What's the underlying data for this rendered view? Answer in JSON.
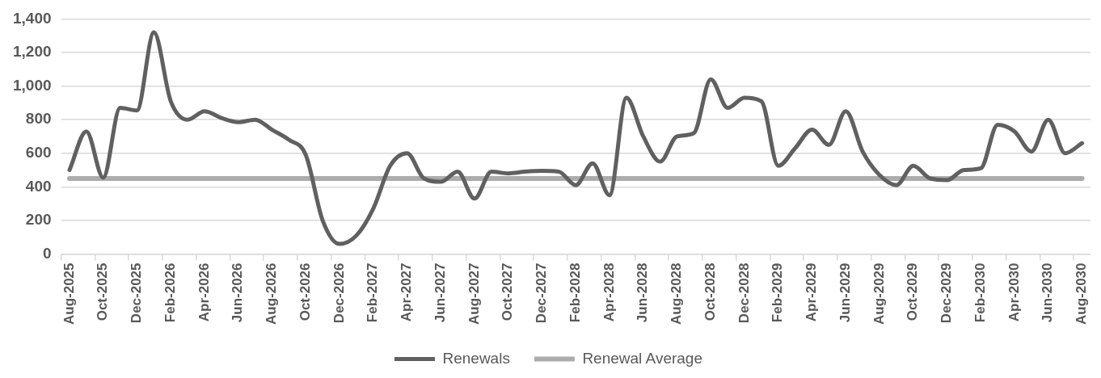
{
  "chart_data": {
    "type": "line",
    "categories": [
      "Aug-2025",
      null,
      "Oct-2025",
      null,
      "Dec-2025",
      null,
      "Feb-2026",
      null,
      "Apr-2026",
      null,
      "Jun-2026",
      null,
      "Aug-2026",
      null,
      "Oct-2026",
      null,
      "Dec-2026",
      null,
      "Feb-2027",
      null,
      "Apr-2027",
      null,
      "Jun-2027",
      null,
      "Aug-2027",
      null,
      "Oct-2027",
      null,
      "Dec-2027",
      null,
      "Feb-2028",
      null,
      "Apr-2028",
      null,
      "Jun-2028",
      null,
      "Aug-2028",
      null,
      "Oct-2028",
      null,
      "Dec-2028",
      null,
      "Feb-2029",
      null,
      "Apr-2029",
      null,
      "Jun-2029",
      null,
      "Aug-2029",
      null,
      "Oct-2029",
      null,
      "Dec-2029",
      null,
      "Feb-2030",
      null,
      "Apr-2030",
      null,
      "Jun-2030",
      null,
      "Aug-2030"
    ],
    "series": [
      {
        "name": "Renewals",
        "color": "#606060",
        "values": [
          500,
          730,
          455,
          870,
          855,
          1320,
          910,
          800,
          850,
          810,
          785,
          800,
          740,
          680,
          590,
          200,
          60,
          110,
          270,
          525,
          600,
          450,
          430,
          490,
          330,
          490,
          480,
          490,
          495,
          490,
          410,
          540,
          350,
          930,
          700,
          550,
          700,
          720,
          1040,
          870,
          930,
          910,
          525,
          630,
          740,
          650,
          850,
          610,
          470,
          410,
          525,
          450,
          440,
          500,
          510,
          770,
          730,
          610,
          800,
          600,
          660
        ]
      },
      {
        "name": "Renewal Average",
        "color": "#acacac",
        "values": [
          450,
          450,
          450,
          450,
          450,
          450,
          450,
          450,
          450,
          450,
          450,
          450,
          450,
          450,
          450,
          450,
          450,
          450,
          450,
          450,
          450,
          450,
          450,
          450,
          450,
          450,
          450,
          450,
          450,
          450,
          450,
          450,
          450,
          450,
          450,
          450,
          450,
          450,
          450,
          450,
          450,
          450,
          450,
          450,
          450,
          450,
          450,
          450,
          450,
          450,
          450,
          450,
          450,
          450,
          450,
          450,
          450,
          450,
          450,
          450,
          450
        ]
      }
    ],
    "ylim": [
      0,
      1400
    ],
    "yticks": [
      0,
      200,
      400,
      600,
      800,
      {
        "value": 1000,
        "label": "1,000"
      },
      {
        "value": 1200,
        "label": "1,200"
      },
      {
        "value": 1400,
        "label": "1,400"
      }
    ],
    "grid": "y",
    "legend": "bottom",
    "marker": "none"
  }
}
